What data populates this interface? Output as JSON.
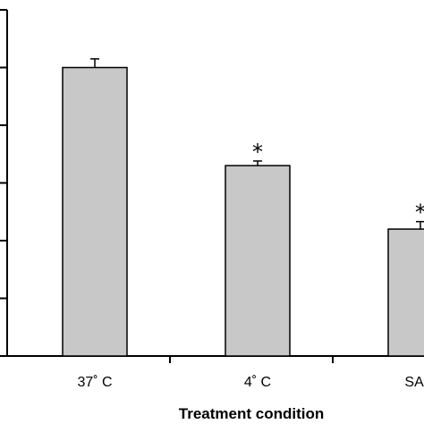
{
  "chart_data": {
    "type": "bar",
    "title": "",
    "xlabel": "Treatment condition",
    "ylabel": "",
    "categories": [
      "37˚ C",
      "4˚ C",
      "SA+I"
    ],
    "values": [
      5.0,
      3.3,
      2.2
    ],
    "error_upper": [
      0.15,
      0.08,
      0.13
    ],
    "significance": [
      "",
      "*",
      "*"
    ],
    "ylim": [
      0,
      6
    ],
    "y_major_step": 1,
    "bar_color": "#c8c8c8",
    "grid": false,
    "legend": "none"
  }
}
